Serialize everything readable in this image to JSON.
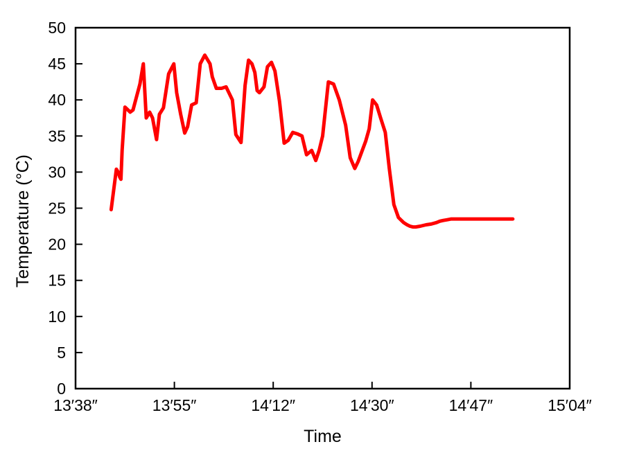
{
  "chart_data": {
    "type": "line",
    "title": "",
    "xlabel": "Time",
    "ylabel": "Temperature (°C)",
    "ylim": [
      0,
      50
    ],
    "y_ticks": [
      0,
      5,
      10,
      15,
      20,
      25,
      30,
      35,
      40,
      45,
      50
    ],
    "x_ticks": [
      "13′38″",
      "13′55″",
      "14′12″",
      "14′30″",
      "14′47″",
      "15′04″"
    ],
    "grid": false,
    "legend": "none",
    "line_color": "#ff0000",
    "series": [
      {
        "x": [
          6.2,
          7.1,
          7.4,
          7.7,
          7.9,
          8.1,
          8.6,
          9.0,
          9.5,
          10.0,
          10.6,
          11.2,
          11.8,
          12.3,
          12.9,
          13.4,
          14.1,
          14.6,
          15.3,
          16.2,
          17.1,
          17.6,
          18.3,
          19.0,
          19.5,
          20.2,
          21.0,
          21.7,
          22.5,
          23.4,
          23.8,
          24.5,
          25.4,
          26.2,
          27.3,
          27.9,
          28.8,
          29.5,
          30.1,
          30.7,
          31.2,
          31.6,
          32.0,
          32.8,
          33.4,
          34.1,
          34.7,
          35.5,
          36.3,
          37.0,
          37.8,
          38.6,
          39.4,
          40.2,
          41.1,
          41.8,
          42.4,
          43.0,
          44.0,
          44.9,
          45.9,
          47.0,
          47.8,
          48.6,
          49.2,
          49.8,
          50.5,
          51.1,
          51.7,
          52.4,
          53.1,
          53.9,
          54.6,
          55.4,
          56.2,
          57.1,
          57.7,
          58.2,
          58.7,
          59.2,
          60.0,
          61.0,
          61.9,
          62.8,
          63.4,
          64.0,
          64.7,
          65.4,
          66.3,
          67.0,
          67.6,
          68.2,
          69.0,
          69.7,
          70.3,
          71.0,
          71.7,
          72.4,
          73.3,
          74.3,
          75.2,
          76.1
        ],
        "y": [
          24.8,
          30.4,
          30.0,
          29.3,
          29.0,
          33.0,
          39.0,
          38.7,
          38.3,
          38.6,
          40.4,
          42.2,
          45.0,
          37.5,
          38.3,
          37.5,
          34.5,
          38.0,
          38.9,
          43.6,
          45.0,
          41.0,
          38.0,
          35.4,
          36.3,
          39.3,
          39.6,
          45.0,
          46.2,
          45.0,
          43.2,
          41.6,
          41.6,
          41.8,
          40.0,
          35.2,
          34.1,
          42.0,
          45.5,
          45.0,
          43.8,
          41.3,
          41.0,
          41.8,
          44.6,
          45.2,
          44.0,
          39.8,
          34.0,
          34.4,
          35.5,
          35.3,
          35.0,
          32.4,
          33.0,
          31.6,
          33.0,
          35.0,
          42.5,
          42.2,
          40.0,
          36.5,
          32.0,
          30.5,
          31.5,
          32.8,
          34.3,
          36.0,
          40.0,
          39.3,
          37.5,
          35.5,
          30.5,
          25.5,
          23.7,
          23.0,
          22.7,
          22.5,
          22.4,
          22.4,
          22.5,
          22.7,
          22.8,
          23.0,
          23.2,
          23.3,
          23.4,
          23.5,
          23.5,
          23.5,
          23.5,
          23.5,
          23.5,
          23.5,
          23.5,
          23.5,
          23.5,
          23.5,
          23.5,
          23.5,
          23.5,
          23.5
        ]
      }
    ]
  }
}
